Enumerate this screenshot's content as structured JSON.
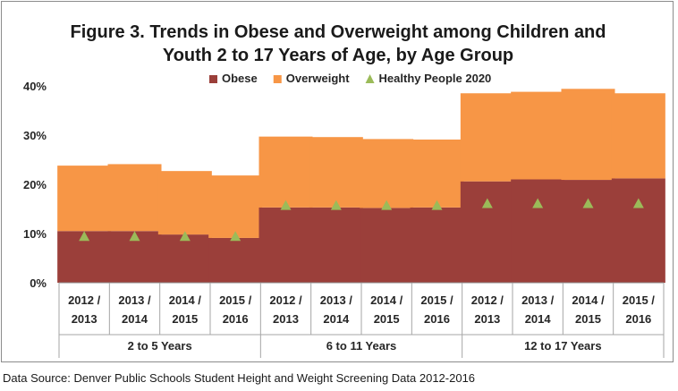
{
  "chart_data": {
    "type": "bar",
    "stacked": true,
    "title": [
      "Figure 3. Trends in Obese and Overweight among Children and",
      "Youth 2 to 17 Years of Age, by Age Group"
    ],
    "groups": [
      {
        "label": "2 to 5 Years",
        "categories": [
          "2012 / 2013",
          "2013 / 2014",
          "2014 / 2015",
          "2015 / 2016"
        ]
      },
      {
        "label": "6 to 11 Years",
        "categories": [
          "2012 / 2013",
          "2013 / 2014",
          "2014 / 2015",
          "2015 / 2016"
        ]
      },
      {
        "label": "12 to 17 Years",
        "categories": [
          "2012 / 2013",
          "2013 / 2014",
          "2014 / 2015",
          "2015 / 2016"
        ]
      }
    ],
    "series": [
      {
        "name": "Obese",
        "color": "#9b3f3a",
        "values": [
          10.5,
          10.5,
          9.8,
          9.1,
          15.3,
          15.3,
          15.2,
          15.3,
          20.6,
          21.0,
          20.9,
          21.2
        ]
      },
      {
        "name": "Overweight",
        "color": "#f79646",
        "values": [
          13.3,
          13.6,
          12.9,
          12.7,
          14.4,
          14.3,
          14.0,
          13.8,
          17.9,
          17.8,
          18.5,
          17.3
        ]
      }
    ],
    "markers": {
      "name": "Healthy People 2020",
      "color": "#9bbb59",
      "values": [
        9.4,
        9.4,
        9.4,
        9.4,
        15.7,
        15.7,
        15.7,
        15.7,
        16.1,
        16.1,
        16.1,
        16.1
      ]
    },
    "ylim": [
      0,
      40
    ],
    "yticks": [
      "0%",
      "10%",
      "20%",
      "30%",
      "40%"
    ],
    "ytick_values": [
      0,
      10,
      20,
      30,
      40
    ],
    "legend_position": "top-center",
    "grid": false
  },
  "source_note": "Data Source: Denver Public Schools Student Height and Weight Screening Data 2012-2016"
}
